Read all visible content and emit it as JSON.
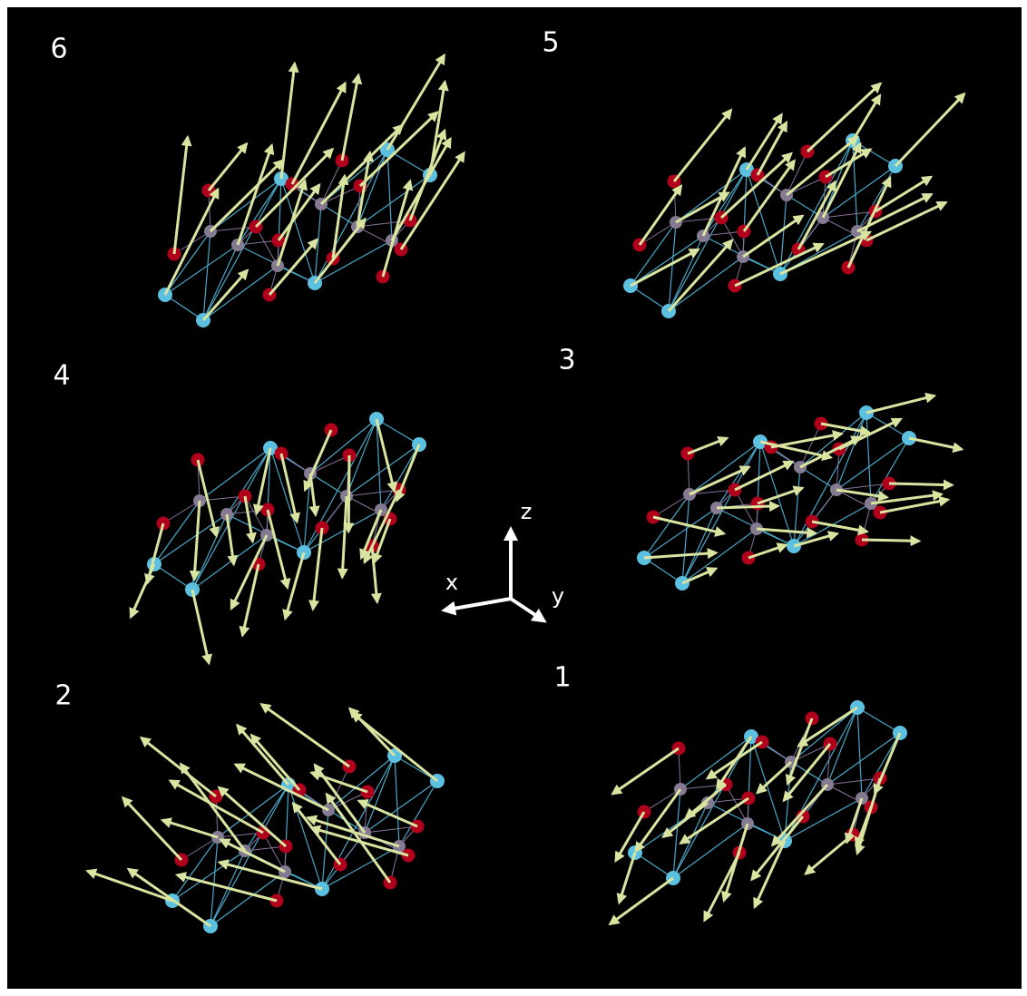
{
  "panels": [
    {
      "label": "6"
    },
    {
      "label": "5"
    },
    {
      "label": "4"
    },
    {
      "label": "3"
    },
    {
      "label": "2"
    },
    {
      "label": "1"
    }
  ],
  "axes": {
    "x": "x",
    "y": "y",
    "z": "z"
  }
}
